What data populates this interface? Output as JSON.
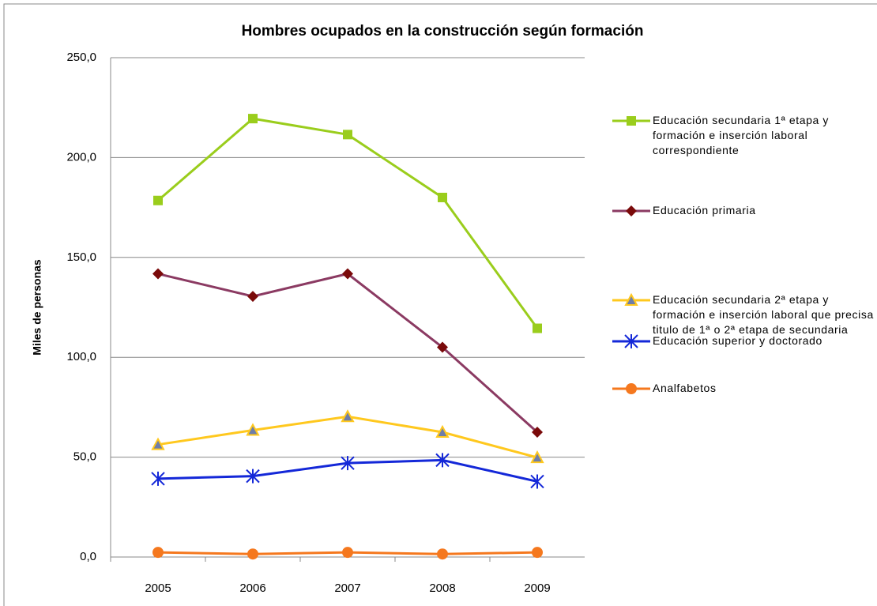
{
  "chart_data": {
    "type": "line",
    "title": "Hombres ocupados en la construcción según formación",
    "y_label": "Miles de personas",
    "categories": [
      "2005",
      "2006",
      "2007",
      "2008",
      "2009"
    ],
    "ylim": [
      0,
      250
    ],
    "yticks": [
      {
        "value": 0,
        "label": "0,0"
      },
      {
        "value": 50,
        "label": "50,0"
      },
      {
        "value": 100,
        "label": "100,0"
      },
      {
        "value": 150,
        "label": "150,0"
      },
      {
        "value": 200,
        "label": "200,0"
      },
      {
        "value": 250,
        "label": "250,0"
      }
    ],
    "grid": true,
    "legend": "right",
    "series": [
      {
        "name": "Educación secundaria 1ª etapa y formación e inserción laboral correspondiente",
        "color": "#9acd1c",
        "marker": "square",
        "values": [
          178.5,
          219.5,
          211.5,
          180,
          114.5
        ]
      },
      {
        "name": "Educación primaria",
        "color": "#8b3a62",
        "marker": "diamond",
        "values": [
          141.8,
          130.5,
          141.8,
          105,
          62.5
        ]
      },
      {
        "name": "Educación secundaria 2ª etapa y formación e inserción laboral que precisa titulo de 1ª o 2ª etapa de secundaria",
        "color": "#ffc81e",
        "marker": "triangle",
        "values": [
          56.3,
          63.5,
          70.3,
          62.5,
          49.8
        ]
      },
      {
        "name": "Educación superior y doctorado",
        "color": "#1428d8",
        "marker": "asterisk",
        "values": [
          39.2,
          40.5,
          47,
          48.5,
          37.8
        ]
      },
      {
        "name": "Analfabetos",
        "color": "#f5781e",
        "marker": "circle",
        "values": [
          2.3,
          1.5,
          2.3,
          1.5,
          2.3
        ]
      }
    ]
  }
}
